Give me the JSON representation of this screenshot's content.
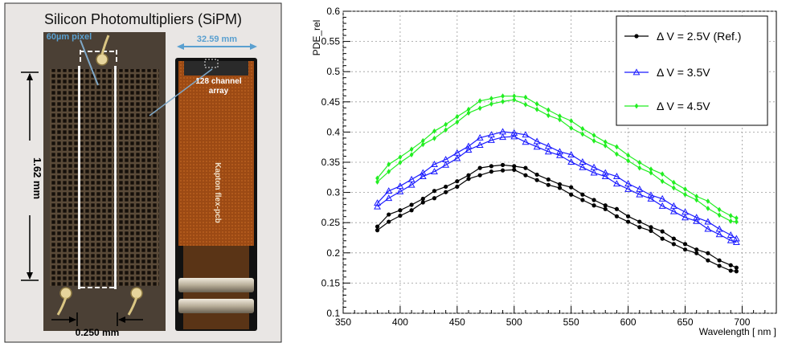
{
  "photo": {
    "title": "Silicon Photomultipliers (SiPM)",
    "pixel_label": "60µm pixel",
    "height_label": "1.62 mm",
    "width_label": "0.250 mm",
    "array_width_label": "32.59 mm",
    "array_label_line1": "128 channel",
    "array_label_line2": "array",
    "pcb_label": "Kapton flex-pcb"
  },
  "chart_data": {
    "type": "line",
    "title": "",
    "xlabel": "Wavelength [ nm ]",
    "ylabel": "PDE_rel",
    "xlim": [
      350,
      730
    ],
    "ylim": [
      0.1,
      0.6
    ],
    "xticks": [
      "350",
      "400",
      "450",
      "500",
      "550",
      "600",
      "650",
      "700"
    ],
    "yticks": [
      "0.1",
      "0.15",
      "0.2",
      "0.25",
      "0.3",
      "0.35",
      "0.4",
      "0.45",
      "0.5",
      "0.55",
      "0.6"
    ],
    "grid": true,
    "legend_position": "top-right",
    "x": [
      380,
      390,
      400,
      410,
      420,
      430,
      440,
      450,
      460,
      470,
      480,
      490,
      500,
      510,
      520,
      530,
      540,
      550,
      560,
      570,
      580,
      590,
      600,
      610,
      620,
      630,
      640,
      650,
      660,
      670,
      680,
      690,
      695
    ],
    "series": [
      {
        "name": "Δ V = 2.5V (Ref.)",
        "color": "#000000",
        "marker": "circle",
        "values": [
          0.24,
          0.257,
          0.267,
          0.276,
          0.286,
          0.296,
          0.306,
          0.315,
          0.325,
          0.334,
          0.34,
          0.342,
          0.34,
          0.334,
          0.326,
          0.318,
          0.31,
          0.302,
          0.293,
          0.284,
          0.275,
          0.266,
          0.257,
          0.248,
          0.239,
          0.229,
          0.22,
          0.211,
          0.202,
          0.193,
          0.184,
          0.176,
          0.172
        ]
      },
      {
        "name": "Δ V = 3.5V",
        "color": "#1a1aff",
        "marker": "triangle",
        "values": [
          0.279,
          0.296,
          0.307,
          0.318,
          0.329,
          0.34,
          0.351,
          0.362,
          0.373,
          0.384,
          0.392,
          0.397,
          0.395,
          0.389,
          0.381,
          0.373,
          0.364,
          0.356,
          0.347,
          0.338,
          0.329,
          0.32,
          0.311,
          0.302,
          0.292,
          0.283,
          0.274,
          0.264,
          0.255,
          0.245,
          0.236,
          0.226,
          0.22
        ]
      },
      {
        "name": "Δ V = 4.5V",
        "color": "#22ee22",
        "marker": "diamond",
        "values": [
          0.32,
          0.34,
          0.355,
          0.368,
          0.382,
          0.395,
          0.409,
          0.422,
          0.434,
          0.445,
          0.452,
          0.456,
          0.456,
          0.451,
          0.443,
          0.433,
          0.423,
          0.412,
          0.402,
          0.391,
          0.38,
          0.369,
          0.358,
          0.346,
          0.335,
          0.324,
          0.313,
          0.302,
          0.29,
          0.279,
          0.268,
          0.258,
          0.254
        ]
      }
    ]
  }
}
